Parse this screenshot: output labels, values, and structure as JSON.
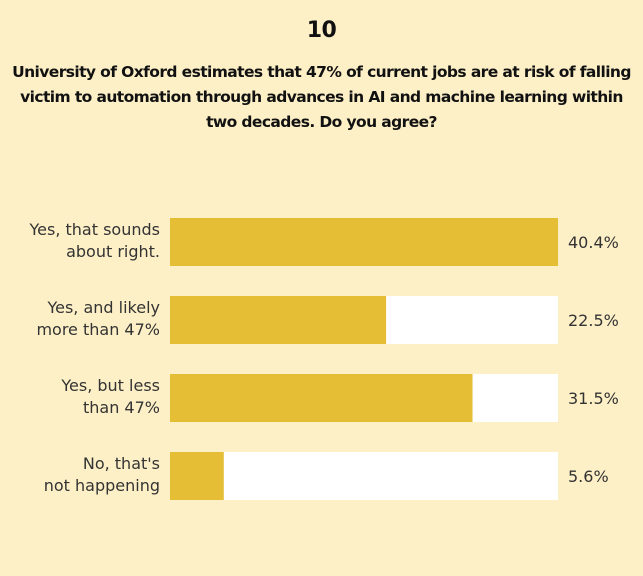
{
  "header": {
    "number": "10",
    "question": "University of Oxford estimates that 47% of current jobs are at risk of falling victim to automation through advances in AI and machine learning within two decades. Do you agree?"
  },
  "colors": {
    "background": "#fdf0c7",
    "bar": "#e5be36",
    "track": "#ffffff",
    "text": "#333333"
  },
  "chart_data": {
    "type": "bar",
    "orientation": "horizontal",
    "categories": [
      [
        "Yes, that sounds",
        "about right."
      ],
      [
        "Yes, and likely",
        "more than 47%"
      ],
      [
        "Yes, but less",
        "than 47%"
      ],
      [
        "No, that's",
        "not happening"
      ]
    ],
    "values": [
      40.4,
      22.5,
      31.5,
      5.6
    ],
    "value_labels": [
      "40.4%",
      "22.5%",
      "31.5%",
      "5.6%"
    ],
    "xlim": [
      0,
      40.4
    ],
    "grid": false,
    "legend": "none"
  }
}
